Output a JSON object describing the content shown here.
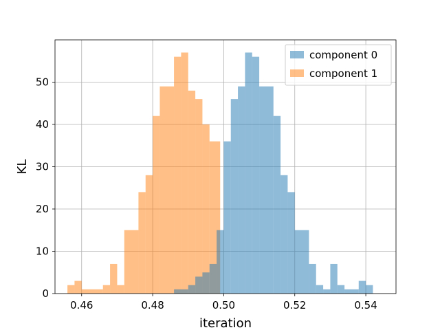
{
  "chart_data": {
    "type": "histogram",
    "title": "",
    "xlabel": "iteration",
    "ylabel": "KL",
    "xlim": [
      0.4525,
      0.5485
    ],
    "ylim": [
      0,
      60
    ],
    "x_ticks": [
      0.46,
      0.48,
      0.5,
      0.52,
      0.54
    ],
    "x_tick_labels": [
      "0.46",
      "0.48",
      "0.50",
      "0.52",
      "0.54"
    ],
    "y_ticks": [
      0,
      10,
      20,
      30,
      40,
      50
    ],
    "y_tick_labels": [
      "0",
      "10",
      "20",
      "30",
      "40",
      "50"
    ],
    "grid": true,
    "legend_position": "top-right",
    "series": [
      {
        "name": "component 1",
        "color": "#ff7f0e",
        "alpha": 0.5,
        "bins": [
          {
            "x0": 0.456,
            "x1": 0.458,
            "count": 2
          },
          {
            "x0": 0.458,
            "x1": 0.46,
            "count": 3
          },
          {
            "x0": 0.46,
            "x1": 0.462,
            "count": 1
          },
          {
            "x0": 0.462,
            "x1": 0.464,
            "count": 1
          },
          {
            "x0": 0.464,
            "x1": 0.466,
            "count": 1
          },
          {
            "x0": 0.466,
            "x1": 0.468,
            "count": 2
          },
          {
            "x0": 0.468,
            "x1": 0.47,
            "count": 7
          },
          {
            "x0": 0.47,
            "x1": 0.472,
            "count": 2
          },
          {
            "x0": 0.472,
            "x1": 0.476,
            "count": 15
          },
          {
            "x0": 0.476,
            "x1": 0.478,
            "count": 24
          },
          {
            "x0": 0.478,
            "x1": 0.48,
            "count": 28
          },
          {
            "x0": 0.48,
            "x1": 0.482,
            "count": 42
          },
          {
            "x0": 0.482,
            "x1": 0.486,
            "count": 49
          },
          {
            "x0": 0.486,
            "x1": 0.488,
            "count": 56
          },
          {
            "x0": 0.488,
            "x1": 0.49,
            "count": 57
          },
          {
            "x0": 0.49,
            "x1": 0.492,
            "count": 48
          },
          {
            "x0": 0.492,
            "x1": 0.494,
            "count": 46
          },
          {
            "x0": 0.494,
            "x1": 0.496,
            "count": 40
          },
          {
            "x0": 0.496,
            "x1": 0.499,
            "count": 36
          }
        ]
      },
      {
        "name": "component 0",
        "color": "#1f77b4",
        "alpha": 0.5,
        "bins": [
          {
            "x0": 0.486,
            "x1": 0.49,
            "count": 1
          },
          {
            "x0": 0.49,
            "x1": 0.492,
            "count": 2
          },
          {
            "x0": 0.492,
            "x1": 0.494,
            "count": 4
          },
          {
            "x0": 0.494,
            "x1": 0.496,
            "count": 5
          },
          {
            "x0": 0.496,
            "x1": 0.498,
            "count": 7
          },
          {
            "x0": 0.498,
            "x1": 0.5,
            "count": 15
          },
          {
            "x0": 0.5,
            "x1": 0.502,
            "count": 36
          },
          {
            "x0": 0.502,
            "x1": 0.504,
            "count": 46
          },
          {
            "x0": 0.504,
            "x1": 0.506,
            "count": 49
          },
          {
            "x0": 0.506,
            "x1": 0.508,
            "count": 57
          },
          {
            "x0": 0.508,
            "x1": 0.51,
            "count": 56
          },
          {
            "x0": 0.51,
            "x1": 0.514,
            "count": 49
          },
          {
            "x0": 0.514,
            "x1": 0.516,
            "count": 42
          },
          {
            "x0": 0.516,
            "x1": 0.518,
            "count": 28
          },
          {
            "x0": 0.518,
            "x1": 0.52,
            "count": 24
          },
          {
            "x0": 0.52,
            "x1": 0.524,
            "count": 15
          },
          {
            "x0": 0.524,
            "x1": 0.526,
            "count": 7
          },
          {
            "x0": 0.526,
            "x1": 0.528,
            "count": 2
          },
          {
            "x0": 0.528,
            "x1": 0.53,
            "count": 1
          },
          {
            "x0": 0.53,
            "x1": 0.532,
            "count": 7
          },
          {
            "x0": 0.532,
            "x1": 0.534,
            "count": 2
          },
          {
            "x0": 0.534,
            "x1": 0.538,
            "count": 1
          },
          {
            "x0": 0.538,
            "x1": 0.54,
            "count": 3
          },
          {
            "x0": 0.54,
            "x1": 0.542,
            "count": 2
          }
        ]
      }
    ],
    "legend": [
      {
        "label": "component 0",
        "color": "#1f77b4"
      },
      {
        "label": "component 1",
        "color": "#ff7f0e"
      }
    ]
  }
}
